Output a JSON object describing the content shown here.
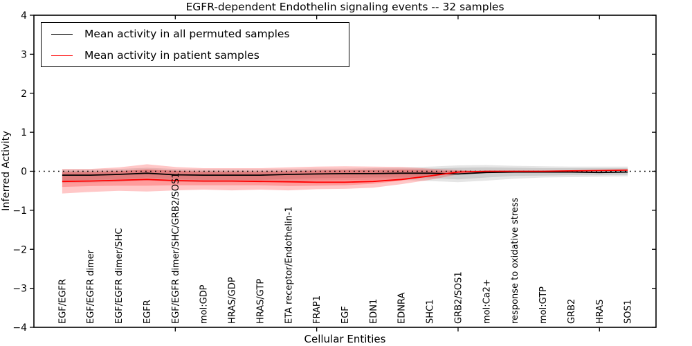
{
  "title": "EGFR-dependent Endothelin signaling events -- 32 samples",
  "legend": {
    "entries": [
      {
        "label": "Mean activity in all permuted samples",
        "color": "#000000"
      },
      {
        "label": "Mean activity in patient samples",
        "color": "#ff0000"
      }
    ]
  },
  "colors": {
    "permuted_line": "#000000",
    "patient_line": "#ff0000",
    "permuted_band_fill": "rgba(0,0,0,0.10)",
    "patient_band_fill": "rgba(255,0,0,0.22)",
    "axis": "#000000"
  },
  "chart_data": {
    "type": "line",
    "title": "EGFR-dependent Endothelin signaling events -- 32 samples",
    "xlabel": "Cellular Entities",
    "ylabel": "Inferred Activity",
    "ylim": [
      -4,
      4
    ],
    "xlim": [
      0,
      22
    ],
    "grid": false,
    "legend_position": "upper left",
    "yticks": [
      -4,
      -3,
      -2,
      -1,
      0,
      1,
      2,
      3,
      4
    ],
    "ytick_labels": [
      "−4",
      "−3",
      "−2",
      "−1",
      "0",
      "1",
      "2",
      "3",
      "4"
    ],
    "xticks": [
      5,
      10,
      15,
      20
    ],
    "zero_line": {
      "y": 0,
      "style": "dotted",
      "color": "#000000"
    },
    "x": [
      1,
      2,
      3,
      4,
      5,
      6,
      7,
      8,
      9,
      10,
      11,
      12,
      13,
      14,
      15,
      16,
      17,
      18,
      19,
      20,
      21
    ],
    "categories": [
      "EGF/EGFR",
      "EGF/EGFR dimer",
      "EGF/EGFR dimer/SHC",
      "EGFR",
      "EGF/EGFR dimer/SHC/GRB2/SOS1",
      "mol:GDP",
      "HRAS/GDP",
      "HRAS/GTP",
      "ETA receptor/Endothelin-1",
      "FRAP1",
      "EGF",
      "EDN1",
      "EDNRA",
      "SHC1",
      "GRB2/SOS1",
      "mol:Ca2+",
      "response to oxidative stress",
      "mol:GTP",
      "GRB2",
      "HRAS",
      "SOS1"
    ],
    "series": [
      {
        "name": "Mean activity in all permuted samples",
        "color": "#000000",
        "values": [
          -0.1,
          -0.1,
          -0.08,
          -0.05,
          -0.09,
          -0.1,
          -0.1,
          -0.1,
          -0.08,
          -0.07,
          -0.06,
          -0.06,
          -0.05,
          -0.05,
          -0.07,
          -0.03,
          -0.02,
          -0.02,
          -0.02,
          -0.03,
          -0.02
        ]
      },
      {
        "name": "Mean activity in patient samples",
        "color": "#ff0000",
        "values": [
          -0.26,
          -0.25,
          -0.23,
          -0.21,
          -0.24,
          -0.25,
          -0.25,
          -0.26,
          -0.27,
          -0.28,
          -0.28,
          -0.26,
          -0.21,
          -0.12,
          -0.02,
          0.0,
          0.0,
          0.0,
          0.01,
          0.02,
          0.03
        ]
      }
    ],
    "bands": [
      {
        "name": "permuted-outer-band",
        "fill": "rgba(0,0,0,0.10)",
        "upper": [
          0.05,
          0.05,
          0.06,
          0.09,
          0.06,
          0.05,
          0.05,
          0.05,
          0.06,
          0.07,
          0.07,
          0.08,
          0.09,
          0.12,
          0.15,
          0.16,
          0.14,
          0.13,
          0.12,
          0.12,
          0.12
        ],
        "lower": [
          -0.3,
          -0.29,
          -0.27,
          -0.23,
          -0.27,
          -0.28,
          -0.28,
          -0.28,
          -0.26,
          -0.24,
          -0.23,
          -0.22,
          -0.22,
          -0.25,
          -0.28,
          -0.24,
          -0.19,
          -0.16,
          -0.15,
          -0.14,
          -0.13
        ]
      },
      {
        "name": "permuted-inner-band",
        "fill": "rgba(0,0,0,0.10)",
        "upper": [
          0.01,
          0.01,
          0.02,
          0.04,
          0.02,
          0.01,
          0.01,
          0.01,
          0.02,
          0.03,
          0.03,
          0.04,
          0.05,
          0.07,
          0.09,
          0.1,
          0.09,
          0.08,
          0.08,
          0.08,
          0.08
        ],
        "lower": [
          -0.23,
          -0.22,
          -0.21,
          -0.16,
          -0.21,
          -0.22,
          -0.22,
          -0.22,
          -0.2,
          -0.18,
          -0.17,
          -0.16,
          -0.16,
          -0.18,
          -0.21,
          -0.16,
          -0.12,
          -0.11,
          -0.1,
          -0.1,
          -0.09
        ]
      },
      {
        "name": "patient-outer-band",
        "fill": "rgba(255,0,0,0.22)",
        "upper": [
          0.06,
          0.06,
          0.1,
          0.18,
          0.11,
          0.08,
          0.08,
          0.08,
          0.1,
          0.12,
          0.13,
          0.12,
          0.11,
          0.07,
          0.03,
          0.01,
          0.01,
          0.01,
          0.02,
          0.03,
          0.04
        ],
        "lower": [
          -0.57,
          -0.53,
          -0.5,
          -0.52,
          -0.49,
          -0.47,
          -0.49,
          -0.47,
          -0.49,
          -0.46,
          -0.45,
          -0.42,
          -0.33,
          -0.22,
          -0.08,
          -0.01,
          -0.01,
          -0.01,
          0.0,
          0.01,
          0.02
        ]
      },
      {
        "name": "patient-inner-band",
        "fill": "rgba(255,0,0,0.22)",
        "upper": [
          -0.02,
          -0.02,
          0.0,
          0.05,
          0.01,
          -0.01,
          -0.01,
          -0.01,
          0.0,
          0.02,
          0.03,
          0.03,
          0.04,
          0.02,
          0.0,
          0.005,
          0.005,
          0.005,
          0.015,
          0.025,
          0.035
        ],
        "lower": [
          -0.4,
          -0.38,
          -0.37,
          -0.37,
          -0.36,
          -0.36,
          -0.36,
          -0.36,
          -0.38,
          -0.37,
          -0.36,
          -0.32,
          -0.24,
          -0.13,
          -0.04,
          -0.005,
          -0.005,
          -0.005,
          0.005,
          0.015,
          0.025
        ]
      }
    ]
  }
}
